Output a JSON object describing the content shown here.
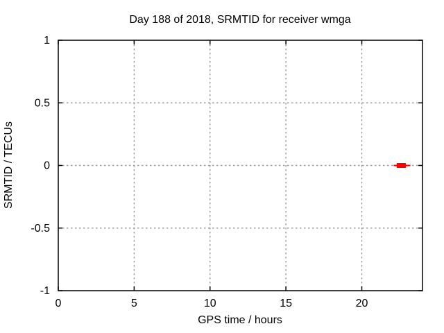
{
  "chart_data": {
    "type": "xerrorbars",
    "title": "Day 188 of 2018, SRMTID for receiver wmga",
    "xlabel": "GPS time / hours",
    "ylabel": "SRMTID / TECUs",
    "xlim": [
      0,
      24
    ],
    "ylim": [
      -1,
      1
    ],
    "xticks": [
      0,
      5,
      10,
      15,
      20
    ],
    "yticks": [
      -1,
      -0.5,
      0,
      0.5,
      1
    ],
    "grid": true,
    "legend": "none",
    "colors": {
      "background": "#ffffff",
      "border": "#000000",
      "grid": "#999999",
      "text": "#000000"
    },
    "series": [
      {
        "name": "SRMTID",
        "color": "#ff0000",
        "points": [
          {
            "x": 22.6,
            "y": 0,
            "whisker_xlow": 22.1,
            "whisker_xhigh": 23.2,
            "box_xlow": 22.3,
            "box_xhigh": 22.9
          }
        ]
      }
    ]
  }
}
